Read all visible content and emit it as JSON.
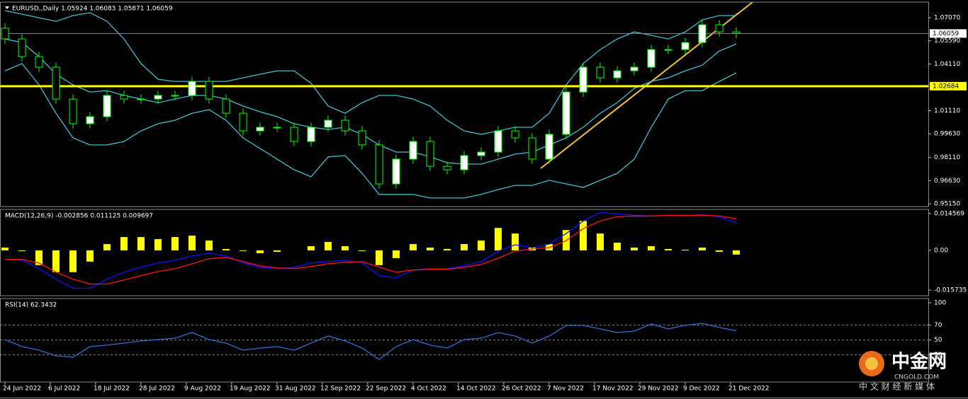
{
  "chart_data": [
    {
      "type": "candlestick",
      "title": "EURUSD,,Daily  1.05924 1.06083 1.05871 1.06059",
      "x": [
        0,
        3,
        6,
        9,
        12,
        15,
        18,
        21,
        24,
        27,
        30,
        33,
        36,
        39,
        42,
        45,
        48,
        51,
        54,
        57,
        60,
        63,
        66,
        69,
        72,
        75,
        78,
        81,
        84,
        87,
        90,
        93,
        96,
        99,
        102,
        105,
        108,
        111,
        114,
        117,
        120,
        123,
        126,
        129
      ],
      "open": [
        1.064,
        1.0571,
        1.0458,
        1.039,
        1.0186,
        1.0028,
        1.0073,
        1.0209,
        1.0186,
        1.0186,
        1.0209,
        1.0209,
        1.0299,
        1.0186,
        1.0095,
        0.9982,
        1.0005,
        1.0005,
        0.9914,
        1.0005,
        1.005,
        0.9982,
        0.9892,
        0.9642,
        0.9801,
        0.9914,
        0.9755,
        0.9733,
        0.9824,
        0.9846,
        0.9982,
        0.9937,
        0.9801,
        0.996,
        1.0231,
        1.039,
        1.0322,
        1.0367,
        1.039,
        1.0503,
        1.0503,
        1.0548,
        1.0662,
        1.0616
      ],
      "high": [
        1.067,
        1.0601,
        1.0488,
        1.042,
        1.0216,
        1.0103,
        1.0239,
        1.0239,
        1.0216,
        1.0239,
        1.0239,
        1.0329,
        1.0329,
        1.0216,
        1.0125,
        1.0035,
        1.0035,
        1.0035,
        1.0035,
        1.008,
        1.008,
        1.0012,
        0.9922,
        0.9831,
        0.9944,
        0.9944,
        0.9785,
        0.9854,
        0.9876,
        1.0012,
        1.0012,
        0.9967,
        0.999,
        1.0261,
        1.042,
        1.042,
        1.0397,
        1.042,
        1.0533,
        1.0533,
        1.0578,
        1.0692,
        1.0692,
        1.0646
      ],
      "low": [
        1.0541,
        1.0428,
        1.036,
        1.0156,
        0.9998,
        0.9998,
        1.0043,
        1.0156,
        1.0156,
        1.0156,
        1.0179,
        1.0179,
        1.0156,
        1.0065,
        0.9952,
        0.9952,
        0.9975,
        0.9884,
        0.9884,
        0.9975,
        0.9952,
        0.9862,
        0.9612,
        0.9612,
        0.9771,
        0.9725,
        0.9703,
        0.9703,
        0.9794,
        0.9816,
        0.9907,
        0.9771,
        0.9771,
        0.993,
        1.0201,
        1.0292,
        1.0292,
        1.0337,
        1.036,
        1.0473,
        1.0473,
        1.0518,
        1.0586,
        1.0576
      ],
      "close": [
        1.0571,
        1.0458,
        1.039,
        1.0186,
        1.0028,
        1.0073,
        1.0209,
        1.0186,
        1.0186,
        1.0209,
        1.0209,
        1.0299,
        1.0186,
        1.0095,
        0.9982,
        1.0005,
        1.0005,
        0.9914,
        1.0005,
        1.005,
        0.9982,
        0.9892,
        0.9642,
        0.9801,
        0.9914,
        0.9755,
        0.9733,
        0.9824,
        0.9846,
        0.9982,
        0.9937,
        0.9801,
        0.996,
        1.0231,
        1.039,
        1.0322,
        1.0367,
        1.039,
        1.0503,
        1.0503,
        1.0548,
        1.0662,
        1.0616,
        1.0606
      ],
      "bull_color": "#ffffff",
      "bear_color": "#000000",
      "wick_color": "#00ff00",
      "bands": [
        {
          "color": "#3fbfcf",
          "values": [
            1.0752,
            1.073,
            1.0707,
            1.0684,
            1.0721,
            1.0739,
            1.0684,
            1.0571,
            1.0413,
            1.0313,
            1.0299,
            1.0299,
            1.0299,
            1.0299,
            1.0322,
            1.0345,
            1.0367,
            1.0367,
            1.0286,
            1.0141,
            1.0095,
            1.0163,
            1.0209,
            1.0209,
            1.0186,
            1.0141,
            1.005,
            0.9982,
            0.996,
            0.9982,
            1.0005,
            1.0005,
            1.0095,
            1.0277,
            1.0413,
            1.0503,
            1.0571,
            1.0616,
            1.0594,
            1.0571,
            1.0616,
            1.0693,
            1.0721,
            1.0721
          ]
        },
        {
          "color": "#3fbfcf",
          "values": [
            1.0571,
            1.0548,
            1.0458,
            1.0345,
            1.0277,
            1.0231,
            1.024,
            1.0209,
            1.0186,
            1.0163,
            1.0186,
            1.0209,
            1.0209,
            1.0186,
            1.0141,
            1.0104,
            1.0073,
            1.0028,
            1.0005,
            0.9991,
            1.0005,
            0.996,
            0.9892,
            0.9846,
            0.9846,
            0.9815,
            0.9778,
            0.9769,
            0.9769,
            0.9801,
            0.9833,
            0.9846,
            0.9892,
            0.9937,
            1.0005,
            1.0095,
            1.0163,
            1.0254,
            1.0299,
            1.0322,
            1.0367,
            1.0403,
            1.0494,
            1.0539
          ]
        },
        {
          "color": "#3fbfcf",
          "values": [
            1.0367,
            1.0413,
            1.0277,
            1.0095,
            0.9937,
            0.9892,
            0.9892,
            0.9914,
            0.9982,
            1.0028,
            1.005,
            1.0095,
            1.0118,
            1.005,
            0.9937,
            0.9869,
            0.9801,
            0.9733,
            0.9688,
            0.9815,
            0.9824,
            0.971,
            0.9575,
            0.9575,
            0.9575,
            0.9552,
            0.9552,
            0.9552,
            0.9575,
            0.9606,
            0.9633,
            0.9633,
            0.9665,
            0.9642,
            0.962,
            0.9665,
            0.971,
            0.9801,
            1.0005,
            1.0186,
            1.024,
            1.024,
            1.0299,
            1.0354
          ]
        }
      ],
      "current_price": 1.06059,
      "level": 1.02684,
      "level_color": "#ffff00",
      "xlim": [
        -0.875,
        162.875
      ],
      "ylim": [
        0.9497,
        1.0807
      ],
      "yticks": [
        {
          "value": 1.0707,
          "label": "1.07070"
        },
        {
          "value": 1.0559,
          "label": "1.05590"
        },
        {
          "value": 1.0411,
          "label": "1.04110"
        },
        {
          "value": 1.0111,
          "label": "1.01110"
        },
        {
          "value": 0.9963,
          "label": "0.99630"
        },
        {
          "value": 0.9811,
          "label": "0.98110"
        },
        {
          "value": 0.9663,
          "label": "0.96630"
        },
        {
          "value": 0.9515,
          "label": "0.95150"
        }
      ]
    },
    {
      "type": "macd",
      "title": "MACD(12,26,9) -0.002856 0.011125 0.009697",
      "x": [
        0,
        3,
        6,
        9,
        12,
        15,
        18,
        21,
        24,
        27,
        30,
        33,
        36,
        39,
        42,
        45,
        48,
        51,
        54,
        57,
        60,
        63,
        66,
        69,
        72,
        75,
        78,
        81,
        84,
        87,
        90,
        93,
        96,
        99,
        102,
        105,
        108,
        111,
        114,
        117,
        120,
        123,
        126,
        129
      ],
      "histogram": {
        "color": "#ffff00",
        "values": [
          0.00111,
          -0.00028,
          -0.00584,
          -0.00862,
          -0.00862,
          -0.00445,
          0.0025,
          0.00528,
          0.00528,
          0.00445,
          0.00528,
          0.00584,
          0.00389,
          0.00056,
          -0.00028,
          -0.00111,
          -0.00056,
          0,
          0.00167,
          0.00334,
          0.00167,
          -0.00028,
          -0.00584,
          -0.00306,
          0.0025,
          0.00111,
          0.00056,
          0.0025,
          0.00389,
          0.0089,
          0.00667,
          0.00111,
          0.0025,
          0.00806,
          0.01168,
          0.00667,
          0.00306,
          0.00111,
          0.00167,
          0.00056,
          0.00028,
          0.00111,
          -0.00056,
          -0.00167
        ]
      },
      "series": [
        {
          "color": "#1010ff",
          "values": [
            -0.00361,
            -0.00389,
            -0.00723,
            -0.0114,
            -0.01501,
            -0.01501,
            -0.0114,
            -0.00862,
            -0.00667,
            -0.005,
            -0.00389,
            -0.00222,
            -0.00111,
            -0.00222,
            -0.005,
            -0.00667,
            -0.00723,
            -0.00667,
            -0.005,
            -0.00445,
            -0.00389,
            -0.005,
            -0.01001,
            -0.01084,
            -0.00778,
            -0.00723,
            -0.00723,
            -0.00612,
            -0.00445,
            -0.00028,
            0.00222,
            0.00111,
            0.0025,
            0.00667,
            0.01168,
            0.01501,
            0.01446,
            0.0139,
            0.01362,
            0.0139,
            0.01362,
            0.01418,
            0.01334,
            0.01084
          ]
        },
        {
          "color": "#ff1010",
          "values": [
            -0.00361,
            -0.00361,
            -0.005,
            -0.00862,
            -0.0114,
            -0.01334,
            -0.01334,
            -0.01168,
            -0.01001,
            -0.00834,
            -0.00723,
            -0.00528,
            -0.00334,
            -0.00278,
            -0.00445,
            -0.00612,
            -0.00695,
            -0.00723,
            -0.00639,
            -0.00528,
            -0.00473,
            -0.00445,
            -0.00667,
            -0.00862,
            -0.00778,
            -0.00751,
            -0.00751,
            -0.00667,
            -0.00556,
            -0.00306,
            -0.00028,
            0.00056,
            0.00111,
            0.00389,
            0.00862,
            0.01168,
            0.01334,
            0.01362,
            0.01362,
            0.0139,
            0.0139,
            0.0139,
            0.01362,
            0.01251
          ]
        }
      ],
      "xlim": [
        -0.875,
        162.875
      ],
      "ylim": [
        -0.01796,
        0.01624
      ],
      "yticks": [
        0.014569,
        {
          "value": 0,
          "label": "0.00"
        },
        -0.015735
      ]
    },
    {
      "type": "line",
      "title": "RSI(14) 62.3432",
      "x": [
        0,
        3,
        6,
        9,
        12,
        15,
        18,
        21,
        24,
        27,
        30,
        33,
        36,
        39,
        42,
        45,
        48,
        51,
        54,
        57,
        60,
        63,
        66,
        69,
        72,
        75,
        78,
        81,
        84,
        87,
        90,
        93,
        96,
        99,
        102,
        105,
        108,
        111,
        114,
        117,
        120,
        123,
        126,
        129
      ],
      "series": [
        {
          "color": "#2f6fd0",
          "values": [
            50.5,
            41,
            36.2,
            28.6,
            26.7,
            41,
            42.9,
            45.7,
            48.6,
            50.5,
            52.4,
            60,
            50.5,
            45.7,
            36.2,
            39,
            41,
            36.2,
            45.7,
            55.2,
            48.6,
            39,
            23.8,
            41,
            50.5,
            42.9,
            39,
            50.5,
            52.4,
            60,
            55.2,
            45.7,
            55.2,
            69.5,
            69.5,
            64.8,
            60,
            61.9,
            71.4,
            64.8,
            69.5,
            72.4,
            66.7,
            62.3
          ]
        }
      ],
      "levels": [
        70,
        50,
        30
      ],
      "xlim": [
        -0.875,
        162.875
      ],
      "ylim": [
        -6.7,
        105.7
      ],
      "yticks": [
        100,
        70,
        50,
        30
      ],
      "xticks": [
        {
          "value": 0,
          "label": "24 Jun 2022"
        },
        {
          "value": 8,
          "label": "6 Jul 2022"
        },
        {
          "value": 16,
          "label": "18 Jul 2022"
        },
        {
          "value": 24,
          "label": "28 Jul 2022"
        },
        {
          "value": 32,
          "label": "9 Aug 2022"
        },
        {
          "value": 40,
          "label": "19 Aug 2022"
        },
        {
          "value": 48,
          "label": "31 Aug 2022"
        },
        {
          "value": 56,
          "label": "12 Sep 2022"
        },
        {
          "value": 64,
          "label": "22 Sep 2022"
        },
        {
          "value": 72,
          "label": "4 Oct 2022"
        },
        {
          "value": 80,
          "label": "14 Oct 2022"
        },
        {
          "value": 88,
          "label": "26 Oct 2022"
        },
        {
          "value": 96,
          "label": "7 Nov 2022"
        },
        {
          "value": 104,
          "label": "17 Nov 2022"
        },
        {
          "value": 112,
          "label": "29 Nov 2022"
        },
        {
          "value": 120,
          "label": "9 Dec 2022"
        },
        {
          "value": 128,
          "label": "21 Dec 2022"
        }
      ]
    }
  ],
  "watermark": {
    "logo": "中金网",
    "site": "CNGOLD.COM",
    "slogan": "中 文 财 经 新 媒 体"
  }
}
